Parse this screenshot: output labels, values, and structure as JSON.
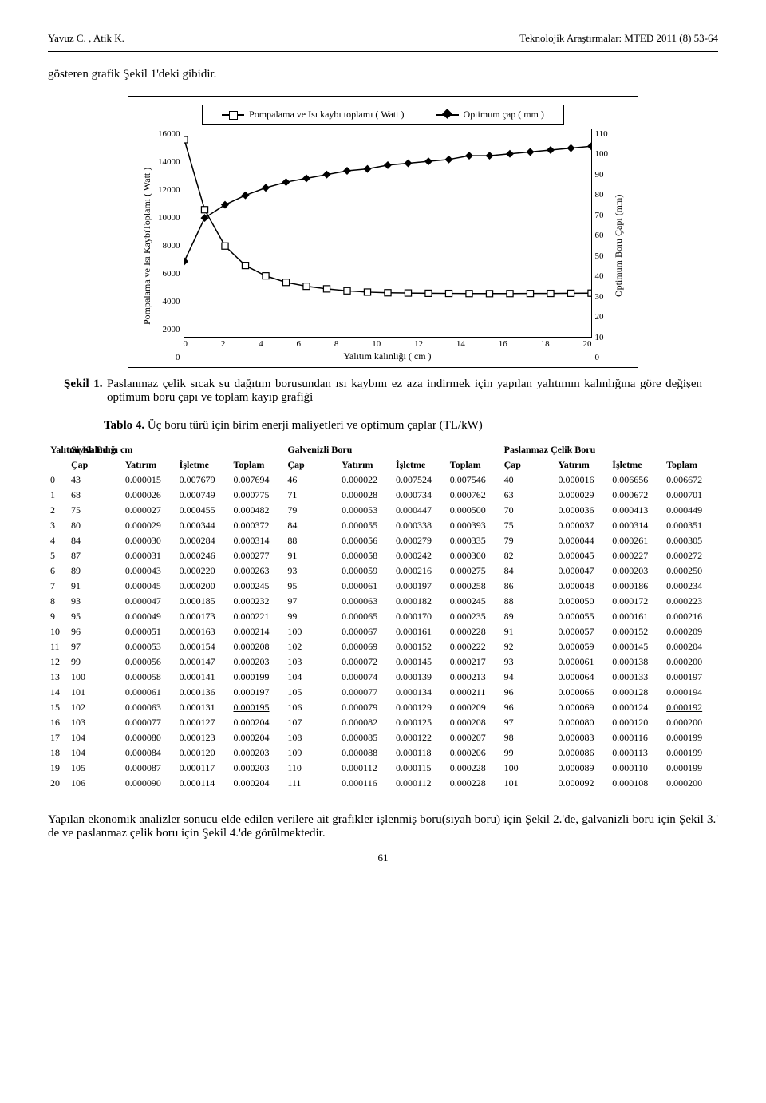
{
  "header": {
    "left": "Yavuz C. ,  Atik K.",
    "right": "Teknolojik Araştırmalar: MTED 2011 (8) 53-64"
  },
  "intro": "gösteren grafik Şekil 1'deki gibidir.",
  "chart": {
    "legend": {
      "series1": "Pompalama ve Isı kaybı toplamı ( Watt )",
      "series2": "Optimum çap ( mm )"
    },
    "ylabel_left": "Pompalama ve Isı KaybıToplamı ( Watt )",
    "ylabel_right": "Optimum Boru Çapı (mm)",
    "xlabel": "Yalıtım kalınlığı ( cm )",
    "y_left": {
      "min": 0,
      "max": 16000,
      "step": 2000,
      "ticks": [
        "16000",
        "14000",
        "12000",
        "10000",
        "8000",
        "6000",
        "4000",
        "2000",
        "0"
      ]
    },
    "y_right": {
      "min": 0,
      "max": 110,
      "step": 10,
      "ticks": [
        "110",
        "100",
        "90",
        "80",
        "70",
        "60",
        "50",
        "40",
        "30",
        "20",
        "10",
        "0"
      ]
    },
    "x": {
      "min": 0,
      "max": 20,
      "step": 2,
      "ticks": [
        "0",
        "2",
        "4",
        "6",
        "8",
        "10",
        "12",
        "14",
        "16",
        "18",
        "20"
      ]
    },
    "series_watt": {
      "x": [
        0,
        1,
        2,
        3,
        4,
        5,
        6,
        7,
        8,
        9,
        10,
        11,
        12,
        13,
        14,
        15,
        16,
        17,
        18,
        19,
        20
      ],
      "y": [
        15200,
        9800,
        7000,
        5500,
        4700,
        4200,
        3900,
        3700,
        3550,
        3450,
        3400,
        3380,
        3360,
        3350,
        3340,
        3335,
        3340,
        3345,
        3350,
        3360,
        3370
      ],
      "color": "#000000",
      "marker": "square"
    },
    "series_cap": {
      "x": [
        0,
        1,
        2,
        3,
        4,
        5,
        6,
        7,
        8,
        9,
        10,
        11,
        12,
        13,
        14,
        15,
        16,
        17,
        18,
        19,
        20
      ],
      "y": [
        40,
        63,
        70,
        75,
        79,
        82,
        84,
        86,
        88,
        89,
        91,
        92,
        93,
        94,
        96,
        96,
        97,
        98,
        99,
        100,
        101
      ],
      "color": "#000000",
      "marker": "diamond"
    },
    "background_color": "#ffffff"
  },
  "fig_caption": {
    "label": "Şekil 1.",
    "text": " Paslanmaz çelik sıcak su dağıtım borusundan ısı kaybını ez aza indirmek için yapılan yalıtımın kalınlığına göre değişen optimum boru çapı ve toplam kayıp grafiği"
  },
  "table_caption": {
    "label": "Tablo 4.",
    "text": " Üç boru türü için birim enerji maliyetleri ve optimum çaplar (TL/kW)"
  },
  "table": {
    "group_labels": {
      "yk": "Yalıtım Kalınlığı cm",
      "g1": "Siyah Boru",
      "g2": "Galvenizli Boru",
      "g3": "Paslanmaz Çelik Boru"
    },
    "cols": [
      "Çap",
      "Yatırım",
      "İşletme",
      "Toplam",
      "Çap",
      "Yatırım",
      "İşletme",
      "Toplam",
      "Çap",
      "Yatırım",
      "İşletme",
      "Toplam"
    ],
    "rows": [
      [
        "0",
        "43",
        "0.000015",
        "0.007679",
        "0.007694",
        "46",
        "0.000022",
        "0.007524",
        "0.007546",
        "40",
        "0.000016",
        "0.006656",
        "0.006672"
      ],
      [
        "1",
        "68",
        "0.000026",
        "0.000749",
        "0.000775",
        "71",
        "0.000028",
        "0.000734",
        "0.000762",
        "63",
        "0.000029",
        "0.000672",
        "0.000701"
      ],
      [
        "2",
        "75",
        "0.000027",
        "0.000455",
        "0.000482",
        "79",
        "0.000053",
        "0.000447",
        "0.000500",
        "70",
        "0.000036",
        "0.000413",
        "0.000449"
      ],
      [
        "3",
        "80",
        "0.000029",
        "0.000344",
        "0.000372",
        "84",
        "0.000055",
        "0.000338",
        "0.000393",
        "75",
        "0.000037",
        "0.000314",
        "0.000351"
      ],
      [
        "4",
        "84",
        "0.000030",
        "0.000284",
        "0.000314",
        "88",
        "0.000056",
        "0.000279",
        "0.000335",
        "79",
        "0.000044",
        "0.000261",
        "0.000305"
      ],
      [
        "5",
        "87",
        "0.000031",
        "0.000246",
        "0.000277",
        "91",
        "0.000058",
        "0.000242",
        "0.000300",
        "82",
        "0.000045",
        "0.000227",
        "0.000272"
      ],
      [
        "6",
        "89",
        "0.000043",
        "0.000220",
        "0.000263",
        "93",
        "0.000059",
        "0.000216",
        "0.000275",
        "84",
        "0.000047",
        "0.000203",
        "0.000250"
      ],
      [
        "7",
        "91",
        "0.000045",
        "0.000200",
        "0.000245",
        "95",
        "0.000061",
        "0.000197",
        "0.000258",
        "86",
        "0.000048",
        "0.000186",
        "0.000234"
      ],
      [
        "8",
        "93",
        "0.000047",
        "0.000185",
        "0.000232",
        "97",
        "0.000063",
        "0.000182",
        "0.000245",
        "88",
        "0.000050",
        "0.000172",
        "0.000223"
      ],
      [
        "9",
        "95",
        "0.000049",
        "0.000173",
        "0.000221",
        "99",
        "0.000065",
        "0.000170",
        "0.000235",
        "89",
        "0.000055",
        "0.000161",
        "0.000216"
      ],
      [
        "10",
        "96",
        "0.000051",
        "0.000163",
        "0.000214",
        "100",
        "0.000067",
        "0.000161",
        "0.000228",
        "91",
        "0.000057",
        "0.000152",
        "0.000209"
      ],
      [
        "11",
        "97",
        "0.000053",
        "0.000154",
        "0.000208",
        "102",
        "0.000069",
        "0.000152",
        "0.000222",
        "92",
        "0.000059",
        "0.000145",
        "0.000204"
      ],
      [
        "12",
        "99",
        "0.000056",
        "0.000147",
        "0.000203",
        "103",
        "0.000072",
        "0.000145",
        "0.000217",
        "93",
        "0.000061",
        "0.000138",
        "0.000200"
      ],
      [
        "13",
        "100",
        "0.000058",
        "0.000141",
        "0.000199",
        "104",
        "0.000074",
        "0.000139",
        "0.000213",
        "94",
        "0.000064",
        "0.000133",
        "0.000197"
      ],
      [
        "14",
        "101",
        "0.000061",
        "0.000136",
        "0.000197",
        "105",
        "0.000077",
        "0.000134",
        "0.000211",
        "96",
        "0.000066",
        "0.000128",
        "0.000194"
      ],
      [
        "15",
        "102",
        "0.000063",
        "0.000131",
        "0.000195",
        "106",
        "0.000079",
        "0.000129",
        "0.000209",
        "96",
        "0.000069",
        "0.000124",
        "0.000192"
      ],
      [
        "16",
        "103",
        "0.000077",
        "0.000127",
        "0.000204",
        "107",
        "0.000082",
        "0.000125",
        "0.000208",
        "97",
        "0.000080",
        "0.000120",
        "0.000200"
      ],
      [
        "17",
        "104",
        "0.000080",
        "0.000123",
        "0.000204",
        "108",
        "0.000085",
        "0.000122",
        "0.000207",
        "98",
        "0.000083",
        "0.000116",
        "0.000199"
      ],
      [
        "18",
        "104",
        "0.000084",
        "0.000120",
        "0.000203",
        "109",
        "0.000088",
        "0.000118",
        "0.000206",
        "99",
        "0.000086",
        "0.000113",
        "0.000199"
      ],
      [
        "19",
        "105",
        "0.000087",
        "0.000117",
        "0.000203",
        "110",
        "0.000112",
        "0.000115",
        "0.000228",
        "100",
        "0.000089",
        "0.000110",
        "0.000199"
      ],
      [
        "20",
        "106",
        "0.000090",
        "0.000114",
        "0.000204",
        "111",
        "0.000116",
        "0.000112",
        "0.000228",
        "101",
        "0.000092",
        "0.000108",
        "0.000200"
      ]
    ],
    "underlines": {
      "15": [
        4,
        12
      ],
      "18": [
        8
      ]
    }
  },
  "body": "Yapılan ekonomik analizler sonucu elde edilen verilere ait grafikler işlenmiş boru(siyah boru) için Şekil 2.'de, galvanizli boru için Şekil 3.' de ve paslanmaz çelik boru için Şekil 4.'de görülmektedir.",
  "page_num": "61"
}
